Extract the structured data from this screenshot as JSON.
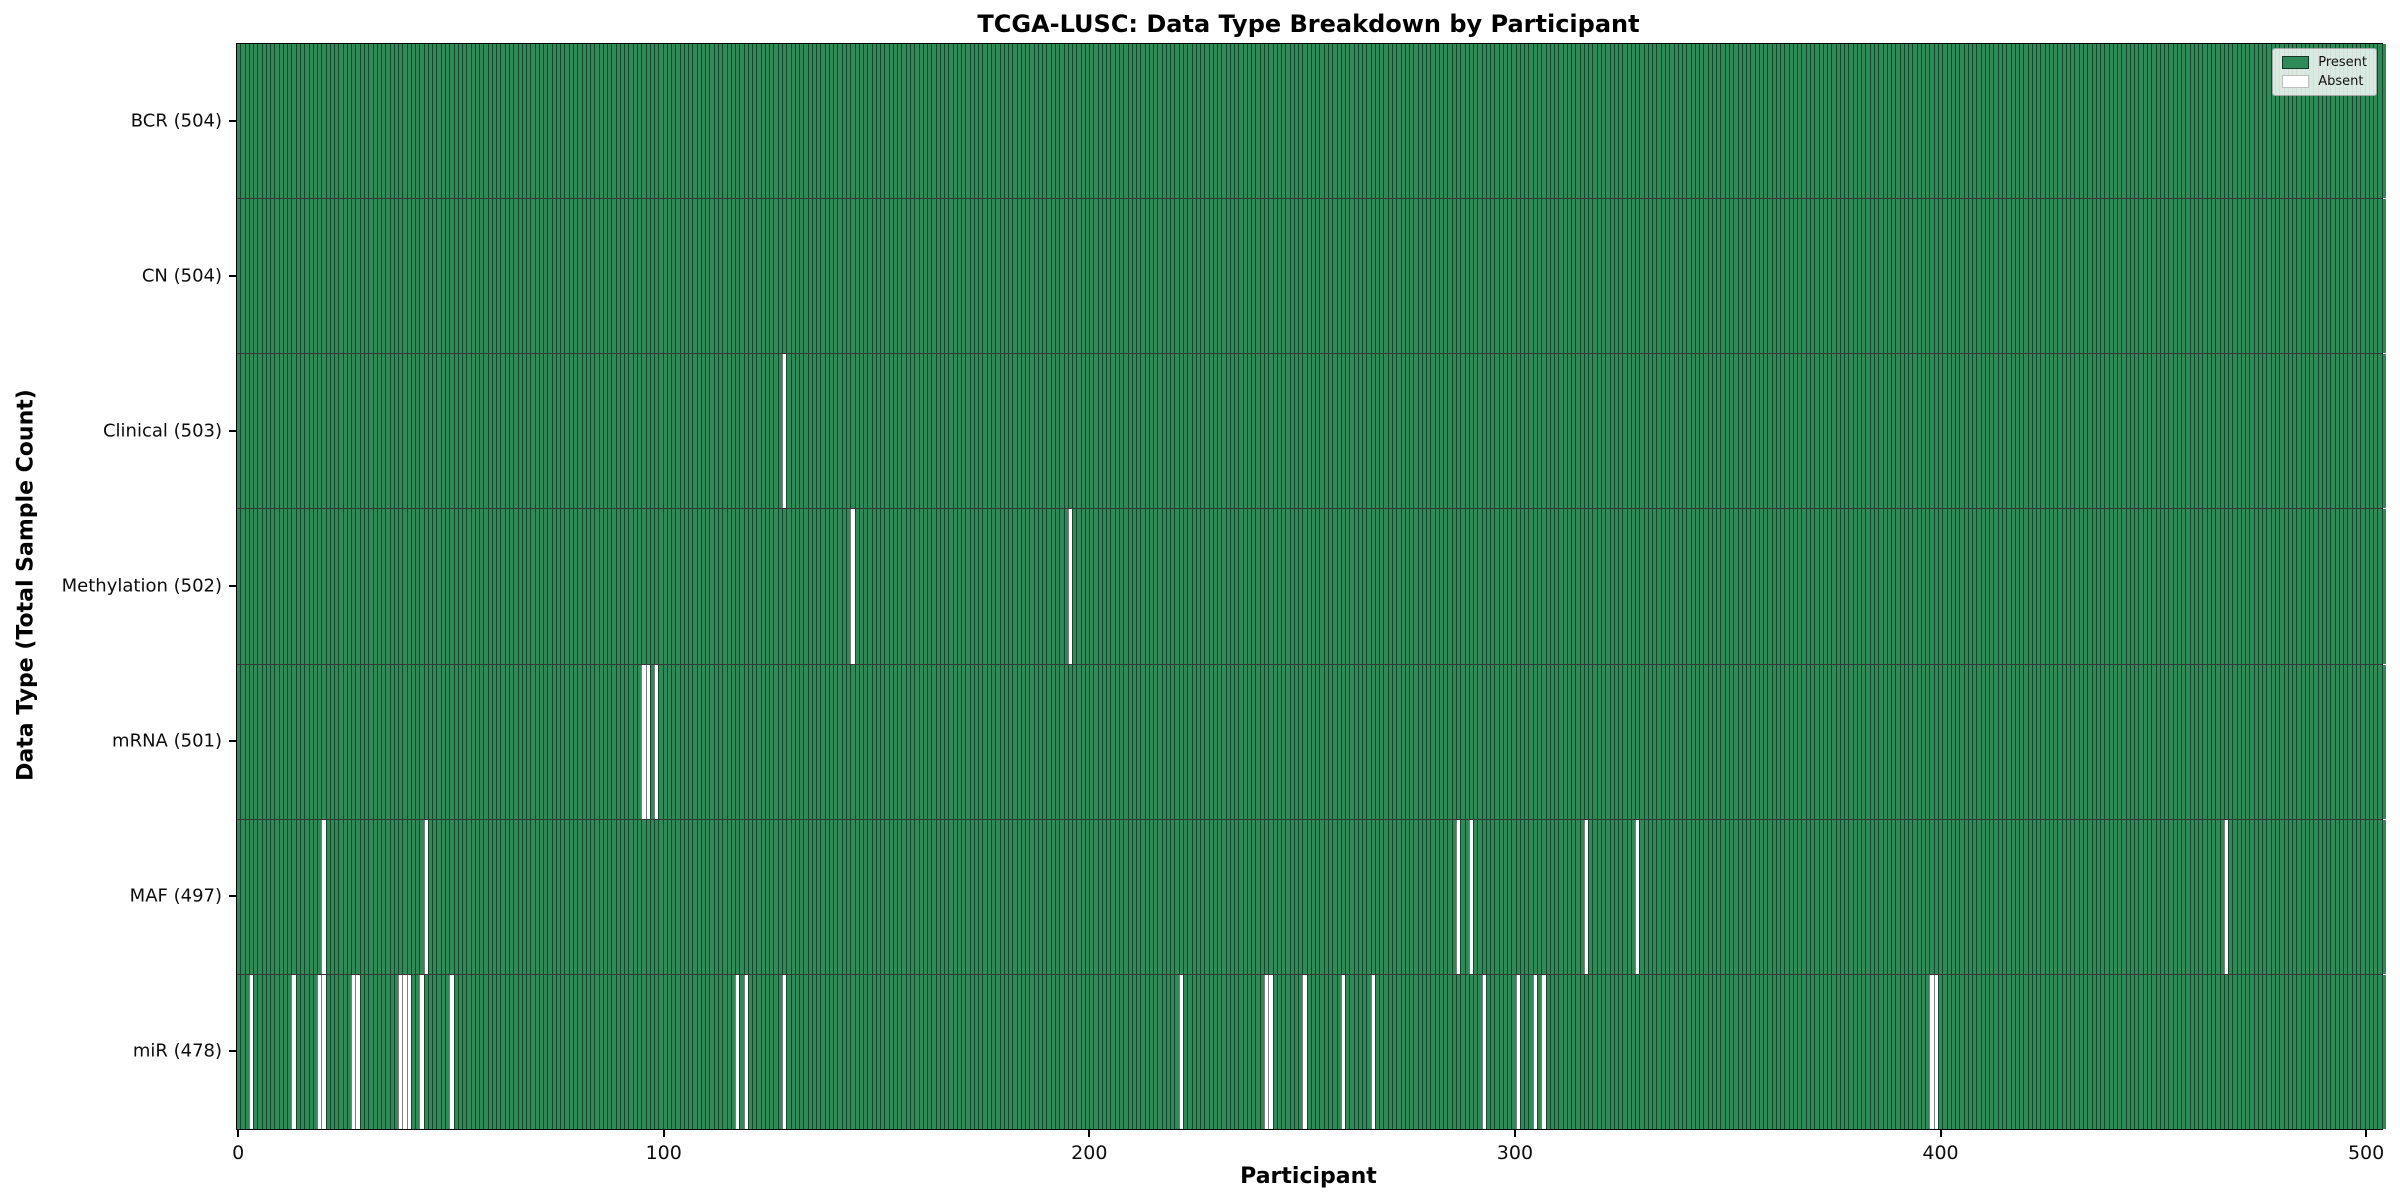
{
  "title": "TCGA-LUSC: Data Type Breakdown by Participant",
  "xlabel": "Participant",
  "ylabel": "Data Type (Total Sample Count)",
  "legend": [
    {
      "label": "Present",
      "color": "#2e8b57"
    },
    {
      "label": "Absent",
      "color": "#ffffff"
    }
  ],
  "chart_data": {
    "type": "heatmap",
    "title": "TCGA-LUSC: Data Type Breakdown by Participant",
    "xlabel": "Participant",
    "ylabel": "Data Type (Total Sample Count)",
    "n_participants": 504,
    "x_ticks": [
      0,
      100,
      200,
      300,
      400,
      500
    ],
    "xlim": [
      0,
      504
    ],
    "legend_position": "upper right",
    "colors": {
      "present": "#2e8b57",
      "absent": "#ffffff",
      "bar_edge": "rgba(0,0,0,0.5)"
    },
    "rows": [
      {
        "label": "BCR (504)",
        "data_type": "BCR",
        "total": 504,
        "absent": []
      },
      {
        "label": "CN (504)",
        "data_type": "CN",
        "total": 504,
        "absent": []
      },
      {
        "label": "Clinical (503)",
        "data_type": "Clinical",
        "total": 503,
        "absent": [
          128
        ]
      },
      {
        "label": "Methylation (502)",
        "data_type": "Methylation",
        "total": 502,
        "absent": [
          144,
          195
        ]
      },
      {
        "label": "mRNA (501)",
        "data_type": "mRNA",
        "total": 501,
        "absent": [
          95,
          96,
          98
        ]
      },
      {
        "label": "MAF (497)",
        "data_type": "MAF",
        "total": 497,
        "absent": [
          20,
          44,
          286,
          289,
          316,
          328,
          466
        ]
      },
      {
        "label": "miR (478)",
        "data_type": "miR",
        "total": 478,
        "absent": [
          3,
          13,
          19,
          20,
          27,
          28,
          38,
          39,
          40,
          43,
          50,
          117,
          119,
          128,
          221,
          241,
          242,
          250,
          259,
          266,
          292,
          300,
          304,
          306,
          397,
          398
        ]
      }
    ]
  }
}
